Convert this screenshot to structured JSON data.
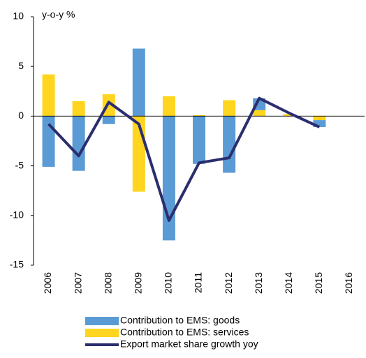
{
  "chart_data": {
    "type": "bar-line",
    "y_label": "y-o-y %",
    "categories": [
      "2006",
      "2007",
      "2008",
      "2009",
      "2010",
      "2011",
      "2012",
      "2013",
      "2014",
      "2015",
      "2016"
    ],
    "series": [
      {
        "name": "Contribution to EMS: goods",
        "type": "bar",
        "color": "#5b9bd5",
        "values": [
          -5.1,
          -5.5,
          -0.8,
          6.8,
          -12.5,
          -4.8,
          -5.7,
          1.2,
          0.0,
          -0.7,
          null
        ]
      },
      {
        "name": "Contribution to EMS: services",
        "type": "bar",
        "color": "#ffd51f",
        "values": [
          4.2,
          1.5,
          2.2,
          -7.6,
          2.0,
          0.1,
          1.6,
          0.6,
          0.2,
          -0.4,
          null
        ]
      },
      {
        "name": "Export market share growth yoy",
        "type": "line",
        "color": "#2b2e6e",
        "values": [
          -0.8,
          -4.0,
          1.4,
          -0.8,
          -10.5,
          -4.7,
          -4.2,
          1.8,
          0.3,
          -1.1,
          null
        ]
      }
    ],
    "stack_order": [
      1,
      0
    ],
    "ylim": [
      -15,
      10
    ],
    "yticks": [
      -15,
      -10,
      -5,
      0,
      5,
      10
    ],
    "grid": false
  }
}
